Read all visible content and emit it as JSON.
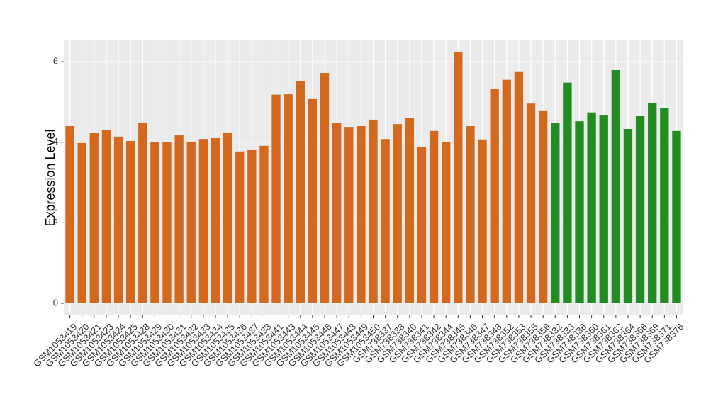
{
  "chart_data": {
    "type": "bar",
    "y_label": "Expression Level",
    "categories": [
      "GSM1053419",
      "GSM1053420",
      "GSM1053421",
      "GSM1053423",
      "GSM1053424",
      "GSM1053425",
      "GSM1053428",
      "GSM1053429",
      "GSM1053430",
      "GSM1053431",
      "GSM1053432",
      "GSM1053433",
      "GSM1053434",
      "GSM1053435",
      "GSM1053436",
      "GSM1053437",
      "GSM1053438",
      "GSM1053441",
      "GSM1053443",
      "GSM1053444",
      "GSM1053445",
      "GSM1053446",
      "GSM1053447",
      "GSM1053448",
      "GSM1053449",
      "GSM1053450",
      "GSM738337",
      "GSM738338",
      "GSM738340",
      "GSM738341",
      "GSM738342",
      "GSM738344",
      "GSM738345",
      "GSM738346",
      "GSM738347",
      "GSM738348",
      "GSM738352",
      "GSM738353",
      "GSM738355",
      "GSM738356",
      "GSM738332",
      "GSM738333",
      "GSM738336",
      "GSM738360",
      "GSM738361",
      "GSM738362",
      "GSM738364",
      "GSM738366",
      "GSM738369",
      "GSM738371",
      "GSM738376"
    ],
    "values": [
      4.4,
      3.98,
      4.24,
      4.3,
      4.14,
      4.03,
      4.49,
      4.01,
      4.01,
      4.17,
      4.01,
      4.08,
      4.1,
      4.24,
      3.77,
      3.82,
      3.91,
      5.18,
      5.19,
      5.51,
      5.07,
      5.72,
      4.47,
      4.38,
      4.4,
      4.56,
      4.08,
      4.45,
      4.61,
      3.89,
      4.28,
      4.0,
      6.23,
      4.4,
      4.07,
      5.33,
      5.55,
      5.76,
      4.96,
      4.79,
      4.47,
      5.48,
      4.52,
      4.74,
      4.68,
      5.79,
      4.33,
      4.65,
      4.98,
      4.84,
      4.28
    ],
    "colors": [
      "#d2691e",
      "#d2691e",
      "#d2691e",
      "#d2691e",
      "#d2691e",
      "#d2691e",
      "#d2691e",
      "#d2691e",
      "#d2691e",
      "#d2691e",
      "#d2691e",
      "#d2691e",
      "#d2691e",
      "#d2691e",
      "#d2691e",
      "#d2691e",
      "#d2691e",
      "#d2691e",
      "#d2691e",
      "#d2691e",
      "#d2691e",
      "#d2691e",
      "#d2691e",
      "#d2691e",
      "#d2691e",
      "#d2691e",
      "#d2691e",
      "#d2691e",
      "#d2691e",
      "#d2691e",
      "#d2691e",
      "#d2691e",
      "#d2691e",
      "#d2691e",
      "#d2691e",
      "#d2691e",
      "#d2691e",
      "#d2691e",
      "#d2691e",
      "#d2691e",
      "#228b22",
      "#228b22",
      "#228b22",
      "#228b22",
      "#228b22",
      "#228b22",
      "#228b22",
      "#228b22",
      "#228b22",
      "#228b22",
      "#228b22"
    ],
    "ylim": [
      -0.3,
      6.53
    ],
    "yticks": [
      0,
      2,
      4,
      6
    ],
    "grid": true
  }
}
